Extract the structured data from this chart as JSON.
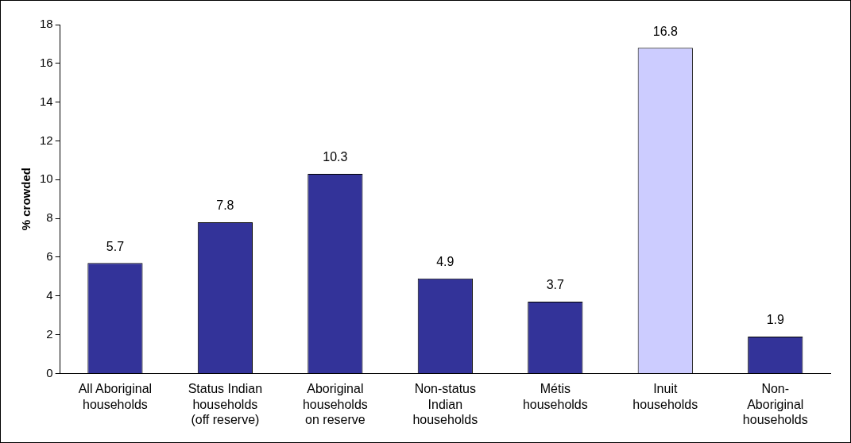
{
  "chart_data": {
    "type": "bar",
    "ylabel": "% crowded",
    "categories": [
      "All Aboriginal households",
      "Status Indian households (off reserve)",
      "Aboriginal households on reserve",
      "Non-status Indian households",
      "Métis households",
      "Inuit households",
      "Non-Aboriginal households"
    ],
    "values": [
      5.7,
      7.8,
      10.3,
      4.9,
      3.7,
      16.8,
      1.9
    ],
    "colors": [
      "#333399",
      "#333399",
      "#333399",
      "#333399",
      "#333399",
      "#ccccff",
      "#333399"
    ],
    "ylim": [
      0,
      18
    ],
    "yticks": [
      0,
      2,
      4,
      6,
      8,
      10,
      12,
      14,
      16,
      18
    ],
    "grid": false,
    "legend": false,
    "data_labels": true
  }
}
